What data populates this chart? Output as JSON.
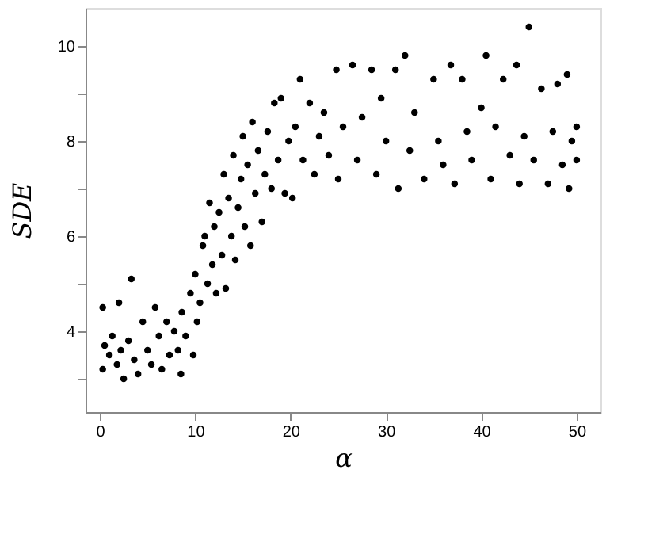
{
  "chart_data": {
    "type": "scatter",
    "xlabel": "α",
    "ylabel": "SDE",
    "marker": "circle",
    "grid": false,
    "legend": false,
    "xlim": [
      -1.5,
      52.5
    ],
    "ylim": [
      2.3,
      10.8
    ],
    "xticks": [
      0,
      10,
      20,
      30,
      40,
      50
    ],
    "yticks": [
      {
        "value": 3,
        "label": null
      },
      4,
      {
        "value": 5,
        "label": null
      },
      6,
      {
        "value": 7,
        "label": null
      },
      8,
      {
        "value": 9,
        "label": null
      },
      10
    ],
    "series": [
      {
        "color": "#000000",
        "x": [
          0.3,
          0.3,
          0.5,
          1,
          1.3,
          1.8,
          2,
          2.2,
          2.5,
          3,
          3.3,
          3.6,
          4,
          4.5,
          5,
          5.4,
          5.8,
          6.2,
          6.5,
          7,
          7.3,
          7.8,
          8.2,
          8.5,
          8.6,
          9,
          9.5,
          9.8,
          10,
          10.2,
          10.5,
          10.8,
          11,
          11.3,
          11.5,
          11.8,
          12,
          12.2,
          12.5,
          12.8,
          13,
          13.2,
          13.5,
          13.8,
          14,
          14.2,
          14.5,
          14.8,
          15,
          15.2,
          15.5,
          15.8,
          16,
          16.3,
          16.6,
          17,
          17.3,
          17.6,
          18,
          18.3,
          18.7,
          19,
          19.4,
          19.8,
          20.2,
          20.5,
          21,
          21.3,
          22,
          22.5,
          23,
          23.5,
          24,
          24.8,
          25,
          25.5,
          26.5,
          27,
          27.5,
          28.5,
          29,
          29.5,
          30,
          31,
          31.3,
          32,
          32.5,
          33,
          34,
          35,
          35.5,
          36,
          36.8,
          37.2,
          38,
          38.5,
          39,
          40,
          40.5,
          41,
          41.5,
          42.3,
          43,
          43.7,
          44,
          44.5,
          45,
          45.5,
          46.3,
          47,
          47.5,
          48,
          48.5,
          49,
          49.2,
          49.5,
          50,
          50
        ],
        "values": [
          3.2,
          4.5,
          3.7,
          3.5,
          3.9,
          3.3,
          4.6,
          3.6,
          3.0,
          3.8,
          5.1,
          3.4,
          3.1,
          4.2,
          3.6,
          3.3,
          4.5,
          3.9,
          3.2,
          4.2,
          3.5,
          4.0,
          3.6,
          3.1,
          4.4,
          3.9,
          4.8,
          3.5,
          5.2,
          4.2,
          4.6,
          5.8,
          6.0,
          5.0,
          6.7,
          5.4,
          6.2,
          4.8,
          6.5,
          5.6,
          7.3,
          4.9,
          6.8,
          6.0,
          7.7,
          5.5,
          6.6,
          7.2,
          8.1,
          6.2,
          7.5,
          5.8,
          8.4,
          6.9,
          7.8,
          6.3,
          7.3,
          8.2,
          7.0,
          8.8,
          7.6,
          8.9,
          6.9,
          8.0,
          6.8,
          8.3,
          9.3,
          7.6,
          8.8,
          7.3,
          8.1,
          8.6,
          7.7,
          9.5,
          7.2,
          8.3,
          9.6,
          7.6,
          8.5,
          9.5,
          7.3,
          8.9,
          8.0,
          9.5,
          7.0,
          9.8,
          7.8,
          8.6,
          7.2,
          9.3,
          8.0,
          7.5,
          9.6,
          7.1,
          9.3,
          8.2,
          7.6,
          8.7,
          9.8,
          7.2,
          8.3,
          9.3,
          7.7,
          9.6,
          7.1,
          8.1,
          10.4,
          7.6,
          9.1,
          7.1,
          8.2,
          9.2,
          7.5,
          9.4,
          7.0,
          8.0,
          7.6,
          8.3
        ]
      }
    ]
  }
}
